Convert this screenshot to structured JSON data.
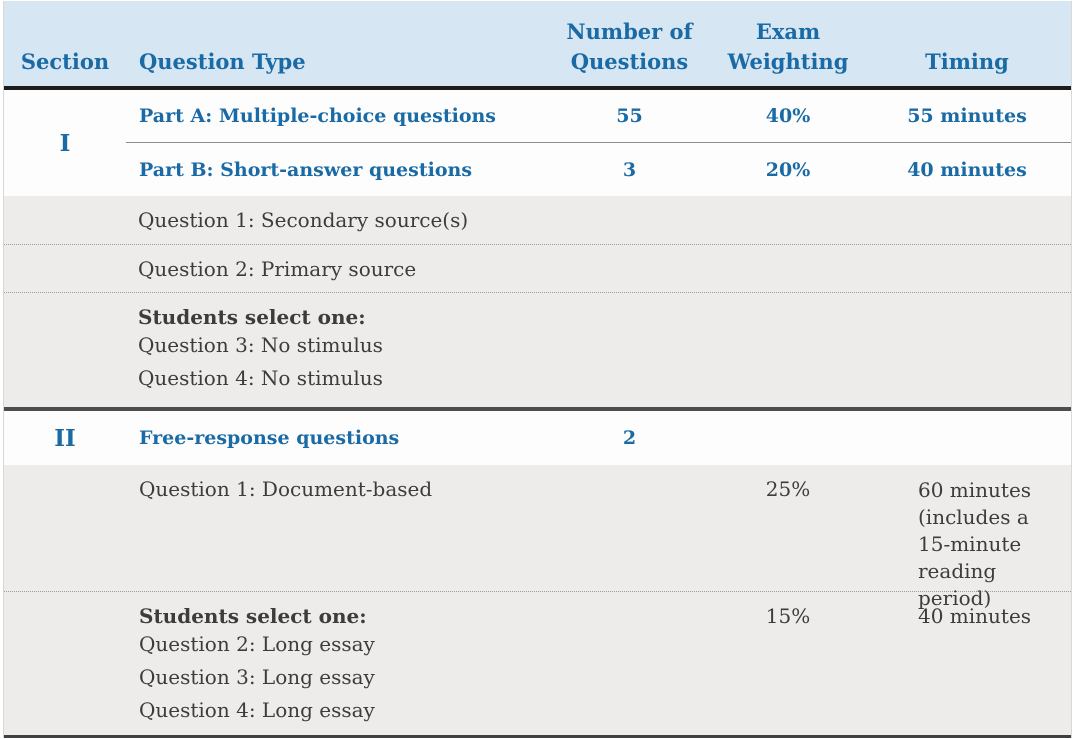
{
  "colors": {
    "header_bg": "#d7e6f3",
    "accent_blue": "#1a6ba5",
    "gray_row_bg": "#edecea",
    "dark_text": "#3d3c3c",
    "header_rule": "#1c1c1c"
  },
  "header": {
    "section": "Section",
    "question_type": "Question Type",
    "num_questions": "Number of Questions",
    "exam_weighting": "Exam Weighting",
    "timing": "Timing"
  },
  "section1": {
    "numeral": "I",
    "part_a": {
      "label": "Part A: Multiple-choice questions",
      "count": "55",
      "weight": "40%",
      "timing": "55 minutes"
    },
    "part_b": {
      "label": "Part B: Short-answer questions",
      "count": "3",
      "weight": "20%",
      "timing": "40 minutes"
    },
    "details": {
      "q1": "Question 1: Secondary source(s)",
      "q2": "Question 2: Primary source",
      "select_label": "Students select one:",
      "q3": "Question 3: No stimulus",
      "q4": "Question 4: No stimulus"
    }
  },
  "section2": {
    "numeral": "II",
    "label": "Free-response questions",
    "count": "2",
    "doc_based": {
      "label": "Question 1: Document-based",
      "weight": "25%",
      "timing": "60 minutes\n(includes a\n15-minute\nreading period)"
    },
    "select": {
      "label": "Students select one:",
      "weight": "15%",
      "timing": "40 minutes",
      "q2": "Question 2: Long essay",
      "q3": "Question 3: Long essay",
      "q4": "Question 4: Long essay"
    }
  }
}
